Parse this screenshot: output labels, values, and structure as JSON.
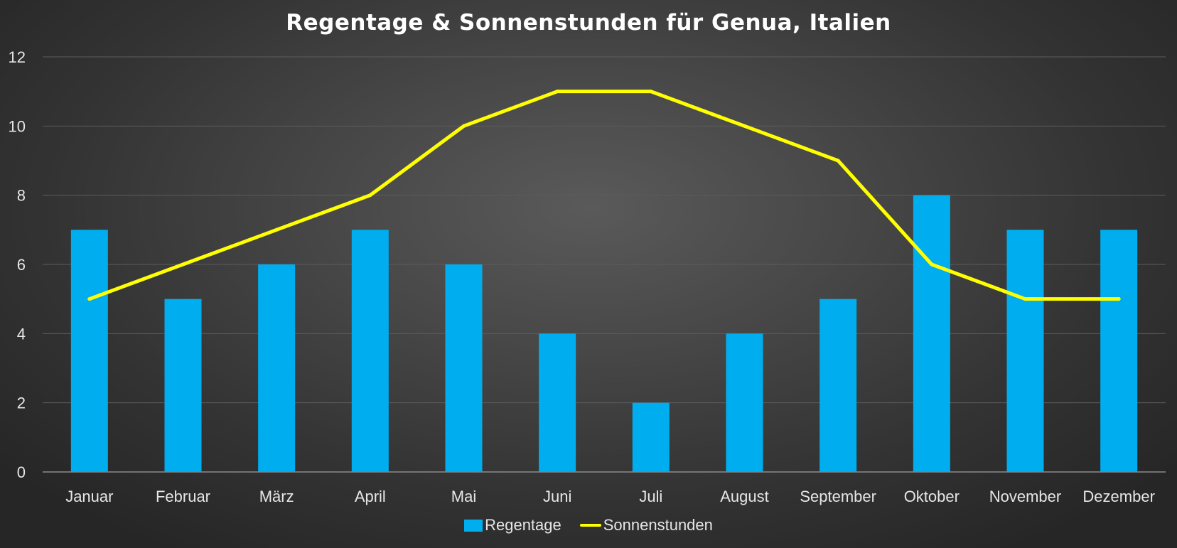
{
  "colors": {
    "bar": "#00aeef",
    "line": "#ffff00",
    "grid": "#5c5c5c",
    "axis": "#8a8a8a",
    "text": "#e6e6e6"
  },
  "chart_data": {
    "type": "bar",
    "title": "Regentage & Sonnenstunden für Genua, Italien",
    "xlabel": "",
    "ylabel": "",
    "ylim": [
      0,
      12
    ],
    "yticks": [
      0,
      2,
      4,
      6,
      8,
      10,
      12
    ],
    "grid": true,
    "legend_position": "bottom",
    "categories": [
      "Januar",
      "Februar",
      "März",
      "April",
      "Mai",
      "Juni",
      "Juli",
      "August",
      "September",
      "Oktober",
      "November",
      "Dezember"
    ],
    "series": [
      {
        "name": "Regentage",
        "type": "bar",
        "values": [
          7,
          5,
          6,
          7,
          6,
          4,
          2,
          4,
          5,
          8,
          7,
          7
        ]
      },
      {
        "name": "Sonnenstunden",
        "type": "line",
        "values": [
          5,
          6,
          7,
          8,
          10,
          11,
          11,
          10,
          9,
          6,
          5,
          5
        ]
      }
    ]
  }
}
